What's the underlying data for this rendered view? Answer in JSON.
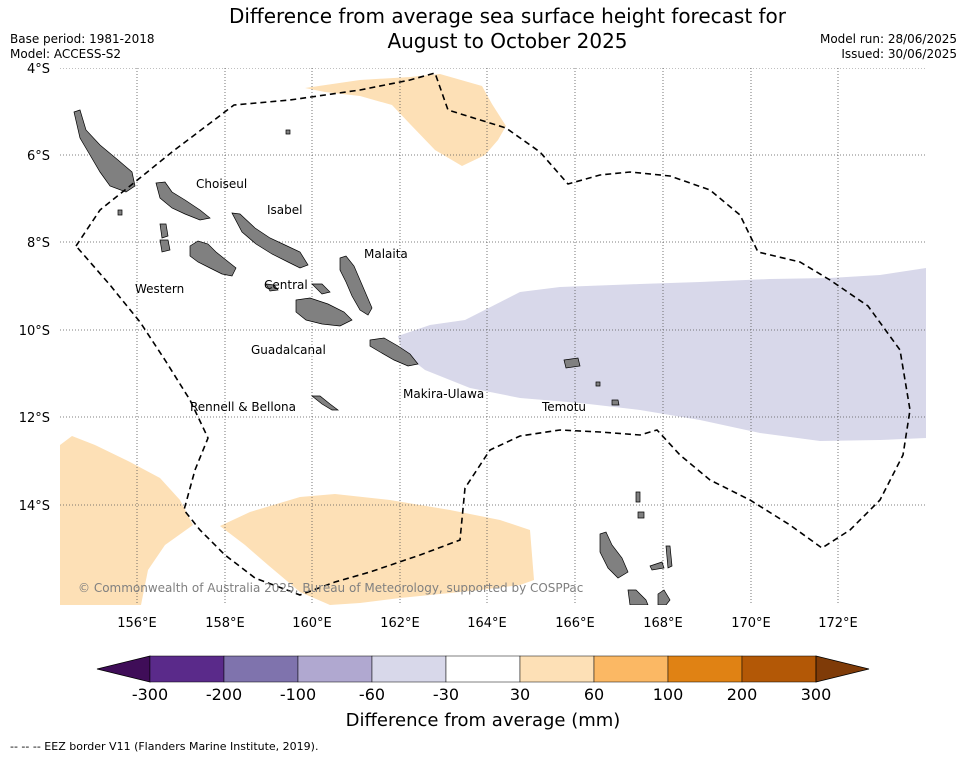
{
  "header": {
    "title_line1": "Difference from average sea surface height forecast for",
    "title_line2": "August to October 2025",
    "base_period": "Base period: 1981-2018",
    "model": "Model: ACCESS-S2",
    "model_run": "Model run: 28/06/2025",
    "issued": "Issued: 30/06/2025"
  },
  "map": {
    "lat_labels": [
      "4°S",
      "6°S",
      "8°S",
      "10°S",
      "12°S",
      "14°S"
    ],
    "lon_labels": [
      "156°E",
      "158°E",
      "160°E",
      "162°E",
      "164°E",
      "166°E",
      "168°E",
      "170°E",
      "172°E"
    ],
    "regions": [
      "Choiseul",
      "Isabel",
      "Malaita",
      "Western",
      "Central",
      "Guadalcanal",
      "Makira-Ulawa",
      "Rennell & Bellona",
      "Temotu"
    ],
    "credit": "© Commonwealth of Australia 2025, Bureau of Meteorology, supported by COSPPac",
    "colors": {
      "positive_30_60": "#fde0b6",
      "negative_30_60": "#d8d8ea",
      "land": "#808080",
      "eez_border": "#000000"
    }
  },
  "colorbar": {
    "ticks": [
      "-300",
      "-200",
      "-100",
      "-60",
      "-30",
      "30",
      "60",
      "100",
      "200",
      "300"
    ],
    "colors": [
      "#3f0d58",
      "#5a2a8a",
      "#7f73ad",
      "#b0a8d0",
      "#d8d8ea",
      "#ffffff",
      "#fde0b6",
      "#fbb864",
      "#e08214",
      "#b35806",
      "#7f3b08"
    ],
    "title": "Difference from average (mm)"
  },
  "footnote": "--  --  -- EEZ border V11 (Flanders Marine Institute, 2019)."
}
